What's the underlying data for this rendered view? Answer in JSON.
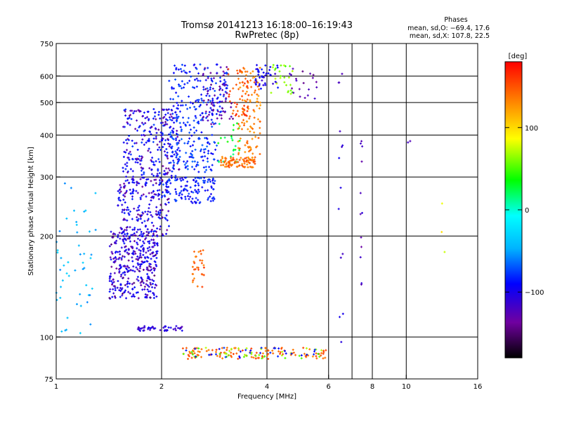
{
  "chart_data": {
    "type": "scatter",
    "title": "Tromsø 20141213 16:18:00–16:19:43",
    "subtitle": "RwPretec (8p)",
    "stats": {
      "header": "Phases",
      "line_o": "mean, sd,O: −69.4, 17.6",
      "line_x": "mean, sd,X: 107.8, 22.5"
    },
    "xlabel": "Frequency [MHz]",
    "ylabel": "Stationary phase Virtual Height [km]",
    "xscale": "log",
    "yscale": "log",
    "xlim": [
      1,
      16
    ],
    "ylim": [
      75,
      750
    ],
    "xticks": [
      1,
      2,
      4,
      6,
      8,
      10,
      16
    ],
    "xtick_labels": [
      "1",
      "2",
      "4",
      "6",
      "8",
      "10",
      "16"
    ],
    "yticks": [
      75,
      100,
      200,
      300,
      400,
      500,
      600,
      750
    ],
    "ytick_labels": [
      "75",
      "100",
      "200",
      "300",
      "400",
      "500",
      "600",
      "750"
    ],
    "xgrid": [
      2,
      4,
      6,
      7,
      8,
      10
    ],
    "ygrid": [
      100,
      200,
      300,
      400,
      500,
      600
    ],
    "colorbar": {
      "label": "[deg]",
      "range": [
        -180,
        180
      ],
      "ticks": [
        100,
        0,
        -100
      ],
      "tick_labels": [
        "100",
        "0",
        "−100"
      ],
      "colors": [
        "#000000",
        "#7000a0",
        "#0000ff",
        "#00b4ff",
        "#00ffff",
        "#00ff00",
        "#ffff00",
        "#ff8000",
        "#ff0000"
      ]
    },
    "clusters": [
      {
        "x": [
          1.42,
          1.95
        ],
        "y": [
          130,
          210
        ],
        "phase": -100,
        "n": 260
      },
      {
        "x": [
          1.42,
          1.95
        ],
        "y": [
          130,
          210
        ],
        "phase": -135,
        "n": 90
      },
      {
        "x": [
          1.5,
          2.1
        ],
        "y": [
          200,
          300
        ],
        "phase": -95,
        "n": 160
      },
      {
        "x": [
          1.5,
          2.1
        ],
        "y": [
          200,
          300
        ],
        "phase": -130,
        "n": 60
      },
      {
        "x": [
          1.55,
          2.25
        ],
        "y": [
          300,
          480
        ],
        "phase": -90,
        "n": 180
      },
      {
        "x": [
          1.55,
          2.25
        ],
        "y": [
          300,
          480
        ],
        "phase": -130,
        "n": 80
      },
      {
        "x": [
          2.0,
          2.85
        ],
        "y": [
          250,
          300
        ],
        "phase": -85,
        "n": 120
      },
      {
        "x": [
          2.1,
          2.9
        ],
        "y": [
          310,
          460
        ],
        "phase": -80,
        "n": 150
      },
      {
        "x": [
          2.1,
          3.1
        ],
        "y": [
          460,
          650
        ],
        "phase": -85,
        "n": 140
      },
      {
        "x": [
          2.6,
          3.2
        ],
        "y": [
          430,
          640
        ],
        "phase": -130,
        "n": 60
      },
      {
        "x": [
          2.9,
          3.35
        ],
        "y": [
          330,
          440
        ],
        "phase": 25,
        "n": 25
      },
      {
        "x": [
          2.95,
          3.7
        ],
        "y": [
          320,
          345
        ],
        "phase": 140,
        "n": 90
      },
      {
        "x": [
          3.3,
          3.85
        ],
        "y": [
          350,
          640
        ],
        "phase": 135,
        "n": 110
      },
      {
        "x": [
          3.1,
          3.55
        ],
        "y": [
          450,
          640
        ],
        "phase": 155,
        "n": 40
      },
      {
        "x": [
          3.7,
          4.3
        ],
        "y": [
          540,
          650
        ],
        "phase": -100,
        "n": 40
      },
      {
        "x": [
          4.1,
          4.8
        ],
        "y": [
          530,
          650
        ],
        "phase": 60,
        "n": 25
      },
      {
        "x": [
          4.6,
          5.6
        ],
        "y": [
          510,
          640
        ],
        "phase": -130,
        "n": 20
      },
      {
        "x": [
          1.0,
          1.3
        ],
        "y": [
          100,
          300
        ],
        "phase": -45,
        "n": 50
      },
      {
        "x": [
          2.45,
          2.65
        ],
        "y": [
          140,
          185
        ],
        "phase": 145,
        "n": 30
      },
      {
        "x": [
          1.7,
          2.3
        ],
        "y": [
          104,
          108
        ],
        "phase": -110,
        "n": 45
      },
      {
        "x": [
          2.3,
          5.9
        ],
        "y": [
          86,
          93
        ],
        "phase": 145,
        "n": 110
      },
      {
        "x": [
          2.3,
          5.9
        ],
        "y": [
          86,
          93
        ],
        "phase": 60,
        "n": 40
      },
      {
        "x": [
          2.3,
          5.9
        ],
        "y": [
          86,
          93
        ],
        "phase": -90,
        "n": 30
      },
      {
        "x": [
          6.4,
          6.6
        ],
        "y": [
          90,
          620
        ],
        "phase": -110,
        "n": 14
      },
      {
        "x": [
          7.4,
          7.5
        ],
        "y": [
          140,
          440
        ],
        "phase": -120,
        "n": 12
      },
      {
        "x": [
          9.9,
          10.3
        ],
        "y": [
          380,
          390
        ],
        "phase": -130,
        "n": 2
      },
      {
        "x": [
          12.6,
          12.9
        ],
        "y": [
          90,
          270
        ],
        "phase": 90,
        "n": 3
      }
    ]
  }
}
